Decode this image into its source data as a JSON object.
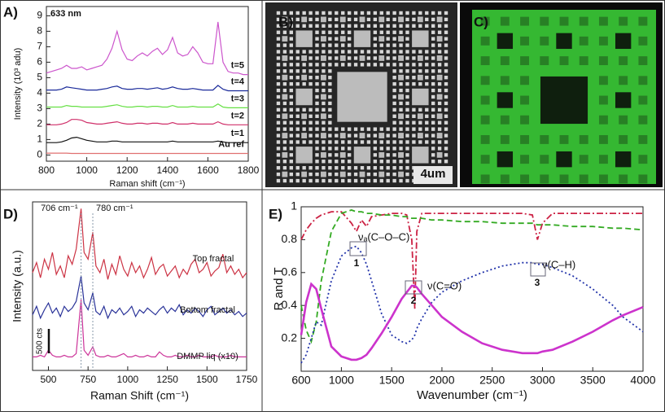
{
  "chart_data": [
    {
      "type": "line",
      "label": "A)",
      "annotation": "633 nm",
      "x_label": "Raman shift (cm⁻¹)",
      "y_label": "Intensity (10³ adu)",
      "x": [
        800,
        825,
        850,
        875,
        900,
        925,
        950,
        975,
        1000,
        1025,
        1050,
        1075,
        1100,
        1125,
        1150,
        1175,
        1200,
        1225,
        1250,
        1275,
        1300,
        1325,
        1350,
        1375,
        1400,
        1425,
        1450,
        1475,
        1500,
        1525,
        1550,
        1575,
        1600,
        1625,
        1650,
        1675,
        1700,
        1725,
        1750,
        1775,
        1800
      ],
      "series": [
        {
          "name": "t=5",
          "color": "#cc55cc",
          "values": [
            5.3,
            5.4,
            5.5,
            5.6,
            5.8,
            5.6,
            5.6,
            5.7,
            5.5,
            5.6,
            5.7,
            5.8,
            6.2,
            6.9,
            8.0,
            6.8,
            6.2,
            6.1,
            6.4,
            6.6,
            6.4,
            6.7,
            6.9,
            6.5,
            6.8,
            7.6,
            6.6,
            6.4,
            6.5,
            7.0,
            6.6,
            6.0,
            5.9,
            5.9,
            8.6,
            6.0,
            5.4,
            5.3,
            5.3,
            5.2,
            5.2
          ]
        },
        {
          "name": "t=4",
          "color": "#1a2a9a",
          "values": [
            4.2,
            4.2,
            4.2,
            4.25,
            4.4,
            4.35,
            4.3,
            4.25,
            4.2,
            4.2,
            4.2,
            4.25,
            4.3,
            4.4,
            4.45,
            4.3,
            4.25,
            4.25,
            4.3,
            4.3,
            4.25,
            4.3,
            4.35,
            4.25,
            4.3,
            4.4,
            4.3,
            4.25,
            4.25,
            4.3,
            4.25,
            4.2,
            4.2,
            4.2,
            4.5,
            4.25,
            4.15,
            4.15,
            4.15,
            4.15,
            4.15
          ]
        },
        {
          "name": "t=3",
          "color": "#66e044",
          "values": [
            3.1,
            3.1,
            3.1,
            3.1,
            3.2,
            3.15,
            3.15,
            3.1,
            3.1,
            3.1,
            3.1,
            3.1,
            3.15,
            3.2,
            3.25,
            3.15,
            3.1,
            3.1,
            3.15,
            3.15,
            3.1,
            3.15,
            3.15,
            3.1,
            3.1,
            3.2,
            3.1,
            3.1,
            3.1,
            3.15,
            3.1,
            3.1,
            3.1,
            3.1,
            3.3,
            3.1,
            3.05,
            3.05,
            3.05,
            3.05,
            3.05
          ]
        },
        {
          "name": "t=2",
          "color": "#d0306a",
          "values": [
            1.95,
            1.95,
            1.95,
            2.0,
            2.1,
            2.3,
            2.3,
            2.25,
            2.1,
            2.05,
            2.0,
            2.0,
            2.05,
            2.1,
            2.15,
            2.05,
            2.0,
            2.0,
            2.05,
            2.05,
            2.0,
            2.05,
            2.05,
            2.0,
            2.0,
            2.1,
            2.0,
            2.0,
            2.0,
            2.05,
            2.0,
            2.0,
            2.0,
            2.0,
            2.15,
            2.0,
            1.95,
            1.95,
            1.95,
            1.95,
            1.95
          ]
        },
        {
          "name": "t=1",
          "color": "#111111",
          "values": [
            0.8,
            0.8,
            0.8,
            0.85,
            0.95,
            1.1,
            1.15,
            1.05,
            0.95,
            0.9,
            0.85,
            0.85,
            0.85,
            0.9,
            0.9,
            0.85,
            0.85,
            0.85,
            0.85,
            0.85,
            0.85,
            0.85,
            0.85,
            0.85,
            0.85,
            0.9,
            0.85,
            0.85,
            0.85,
            0.85,
            0.85,
            0.85,
            0.85,
            0.85,
            0.9,
            0.85,
            0.8,
            0.8,
            0.8,
            0.8,
            0.8
          ]
        },
        {
          "name": "Au ref",
          "color": "#e07070",
          "values": [
            0.12,
            0.12,
            0.12,
            0.12,
            0.12,
            0.1,
            0.1,
            0.1,
            0.1,
            0.1,
            0.1,
            0.1,
            0.1,
            0.1,
            0.1,
            0.1,
            0.1,
            0.1,
            0.1,
            0.1,
            0.1,
            0.1,
            0.1,
            0.1,
            0.1,
            0.1,
            0.1,
            0.1,
            0.1,
            0.1,
            0.1,
            0.1,
            0.1,
            0.1,
            0.1,
            0.1,
            0.1,
            0.1,
            0.1,
            0.1,
            0.1
          ]
        }
      ],
      "xlim": [
        800,
        1800
      ],
      "xticks": [
        800,
        1000,
        1200,
        1400,
        1600,
        1800
      ],
      "ylim": [
        -0.4,
        9.6
      ],
      "yticks": [
        0,
        1,
        2,
        3,
        4,
        5,
        6,
        7,
        8,
        9
      ]
    },
    {
      "type": "line",
      "label": "D)",
      "x_label": "Raman Shift (cm⁻¹)",
      "y_label": "Intensity (a.u.)",
      "scale_bar": "500 cts",
      "vlines": [
        {
          "value": 706,
          "label": "706 cm⁻¹"
        },
        {
          "value": 780,
          "label": "780 cm⁻¹"
        }
      ],
      "x": [
        400,
        425,
        450,
        475,
        500,
        525,
        550,
        575,
        600,
        625,
        650,
        675,
        706,
        725,
        750,
        780,
        800,
        825,
        850,
        875,
        900,
        925,
        950,
        975,
        1000,
        1025,
        1050,
        1075,
        1100,
        1125,
        1150,
        1175,
        1200,
        1225,
        1250,
        1275,
        1300,
        1325,
        1350,
        1375,
        1400,
        1425,
        1450,
        1475,
        1500,
        1525,
        1550,
        1575,
        1600,
        1625,
        1650,
        1675,
        1700,
        1725,
        1750
      ],
      "series": [
        {
          "name": "Top fractal",
          "color": "#cc3344",
          "values": [
            58,
            64,
            55,
            66,
            60,
            70,
            57,
            62,
            55,
            68,
            63,
            72,
            96,
            70,
            66,
            82,
            62,
            58,
            66,
            54,
            63,
            57,
            68,
            60,
            56,
            64,
            58,
            62,
            55,
            60,
            67,
            57,
            61,
            63,
            56,
            59,
            62,
            55,
            60,
            57,
            63,
            66,
            58,
            60,
            64,
            56,
            59,
            61,
            69,
            58,
            62,
            57,
            60,
            55,
            58
          ]
        },
        {
          "name": "Bottom fractal",
          "color": "#2a3399",
          "values": [
            33,
            38,
            31,
            36,
            40,
            34,
            37,
            32,
            38,
            35,
            37,
            41,
            56,
            40,
            36,
            46,
            35,
            33,
            38,
            31,
            36,
            34,
            37,
            33,
            35,
            38,
            32,
            36,
            34,
            37,
            35,
            33,
            36,
            38,
            34,
            37,
            35,
            39,
            33,
            36,
            34,
            37,
            35,
            32,
            36,
            38,
            33,
            35,
            37,
            34,
            36,
            33,
            35,
            32,
            34
          ]
        },
        {
          "name": "DMMP liq (x10)",
          "color": "#cc3399",
          "values": [
            8,
            8,
            9,
            8,
            12,
            9,
            8,
            8,
            9,
            8,
            8,
            10,
            42,
            12,
            9,
            14,
            9,
            8,
            8,
            9,
            8,
            8,
            9,
            10,
            8,
            8,
            9,
            8,
            8,
            9,
            8,
            8,
            11,
            9,
            8,
            8,
            9,
            8,
            8,
            9,
            8,
            8,
            9,
            8,
            8,
            8,
            9,
            8,
            8,
            8,
            9,
            8,
            8,
            8,
            8
          ]
        }
      ],
      "xlim": [
        400,
        1750
      ],
      "xticks": [
        500,
        750,
        1000,
        1250,
        1500,
        1750
      ],
      "ylim": [
        0,
        100
      ]
    },
    {
      "type": "line",
      "label": "E)",
      "x_label": "Wavenumber (cm⁻¹)",
      "y_label": "R and T",
      "annotations": [
        "νₐ(C–O–C)",
        "1",
        "ν(C=O)",
        "2",
        "ν(C–H)",
        "3"
      ],
      "x": [
        600,
        650,
        700,
        750,
        800,
        900,
        1000,
        1100,
        1150,
        1200,
        1250,
        1300,
        1400,
        1500,
        1600,
        1650,
        1700,
        1730,
        1750,
        1800,
        1900,
        2000,
        2200,
        2400,
        2600,
        2800,
        2900,
        2950,
        3000,
        3100,
        3300,
        3500,
        3700,
        3800,
        4000
      ],
      "series": [
        {
          "color": "#cc2244",
          "style": "dashdot",
          "values": [
            0.8,
            0.86,
            0.9,
            0.93,
            0.95,
            0.97,
            0.97,
            0.9,
            0.85,
            0.92,
            0.88,
            0.94,
            0.95,
            0.96,
            0.96,
            0.95,
            0.8,
            0.38,
            0.85,
            0.96,
            0.96,
            0.96,
            0.96,
            0.96,
            0.96,
            0.96,
            0.95,
            0.8,
            0.9,
            0.96,
            0.96,
            0.96,
            0.96,
            0.96,
            0.96
          ]
        },
        {
          "color": "#33aa22",
          "style": "dash",
          "values": [
            0.4,
            0.25,
            0.18,
            0.3,
            0.55,
            0.85,
            0.96,
            0.98,
            0.97,
            0.97,
            0.96,
            0.96,
            0.95,
            0.95,
            0.94,
            0.94,
            0.93,
            0.93,
            0.93,
            0.93,
            0.92,
            0.92,
            0.91,
            0.91,
            0.9,
            0.9,
            0.9,
            0.89,
            0.89,
            0.89,
            0.88,
            0.88,
            0.87,
            0.87,
            0.86
          ]
        },
        {
          "color": "#2233aa",
          "style": "dot",
          "values": [
            0.05,
            0.1,
            0.2,
            0.3,
            0.28,
            0.55,
            0.7,
            0.75,
            0.76,
            0.72,
            0.65,
            0.55,
            0.35,
            0.22,
            0.18,
            0.17,
            0.19,
            0.22,
            0.26,
            0.32,
            0.42,
            0.48,
            0.55,
            0.6,
            0.64,
            0.66,
            0.66,
            0.65,
            0.65,
            0.63,
            0.58,
            0.5,
            0.4,
            0.33,
            0.24
          ]
        },
        {
          "color": "#cc33cc",
          "style": "solid",
          "values": [
            0.22,
            0.42,
            0.53,
            0.5,
            0.38,
            0.15,
            0.09,
            0.07,
            0.07,
            0.08,
            0.1,
            0.14,
            0.23,
            0.33,
            0.44,
            0.48,
            0.52,
            0.52,
            0.51,
            0.47,
            0.4,
            0.33,
            0.24,
            0.17,
            0.13,
            0.11,
            0.11,
            0.11,
            0.12,
            0.13,
            0.18,
            0.24,
            0.31,
            0.34,
            0.39
          ]
        }
      ],
      "xlim": [
        600,
        4000
      ],
      "xticks": [
        600,
        1000,
        1500,
        2000,
        2500,
        3000,
        3500,
        4000
      ],
      "ylim": [
        0,
        1
      ],
      "yticks": [
        0.2,
        0.4,
        0.6,
        0.8,
        1
      ]
    }
  ],
  "images": [
    {
      "label": "B)",
      "scale": "4um"
    },
    {
      "label": "C)"
    }
  ]
}
